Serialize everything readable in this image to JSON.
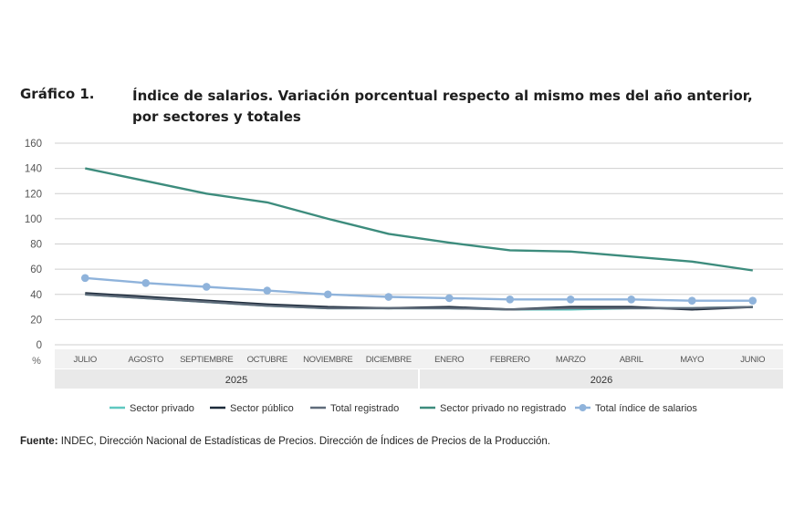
{
  "figure_label": "Gráfico 1.",
  "title": "Índice de salarios. Variación porcentual respecto al mismo mes del año anterior, por sectores y totales",
  "source_label": "Fuente:",
  "source_text": " INDEC, Dirección Nacional de Estadísticas de Precios. Dirección de Índices de Precios de la Producción.",
  "chart_data": {
    "type": "line",
    "title": "Índice de salarios. Variación porcentual respecto al mismo mes del año anterior, por sectores y totales",
    "ylabel": "%",
    "ylim": [
      0,
      160
    ],
    "yticks": [
      0,
      20,
      40,
      60,
      80,
      100,
      120,
      140,
      160
    ],
    "grid": true,
    "legend_position": "bottom",
    "categories": [
      "JULIO",
      "AGOSTO",
      "SEPTIEMBRE",
      "OCTUBRE",
      "NOVIEMBRE",
      "DICIEMBRE",
      "ENERO",
      "FEBRERO",
      "MARZO",
      "ABRIL",
      "MAYO",
      "JUNIO"
    ],
    "year_groups": [
      {
        "label": "2025",
        "count": 6
      },
      {
        "label": "2026",
        "count": 6
      }
    ],
    "series": [
      {
        "name": "Sector privado",
        "color": "#5fc8c0",
        "marker": false,
        "values": [
          40,
          37,
          34,
          31,
          29,
          29,
          29,
          28,
          28,
          29,
          29,
          30
        ]
      },
      {
        "name": "Sector público",
        "color": "#1c2a3a",
        "marker": false,
        "values": [
          41,
          38,
          35,
          32,
          30,
          29,
          30,
          28,
          30,
          30,
          28,
          30
        ]
      },
      {
        "name": "Total registrado",
        "color": "#5f6b7a",
        "marker": false,
        "values": [
          40,
          37,
          34,
          31,
          29,
          29,
          29,
          28,
          29,
          29,
          29,
          30
        ]
      },
      {
        "name": "Sector privado no registrado",
        "color": "#3d8c7d",
        "marker": false,
        "values": [
          140,
          130,
          120,
          113,
          100,
          88,
          81,
          75,
          74,
          70,
          66,
          59
        ]
      },
      {
        "name": "Total índice de salarios",
        "color": "#8fb3db",
        "marker": true,
        "values": [
          53,
          49,
          46,
          43,
          40,
          38,
          37,
          36,
          36,
          36,
          35,
          35
        ]
      }
    ]
  }
}
